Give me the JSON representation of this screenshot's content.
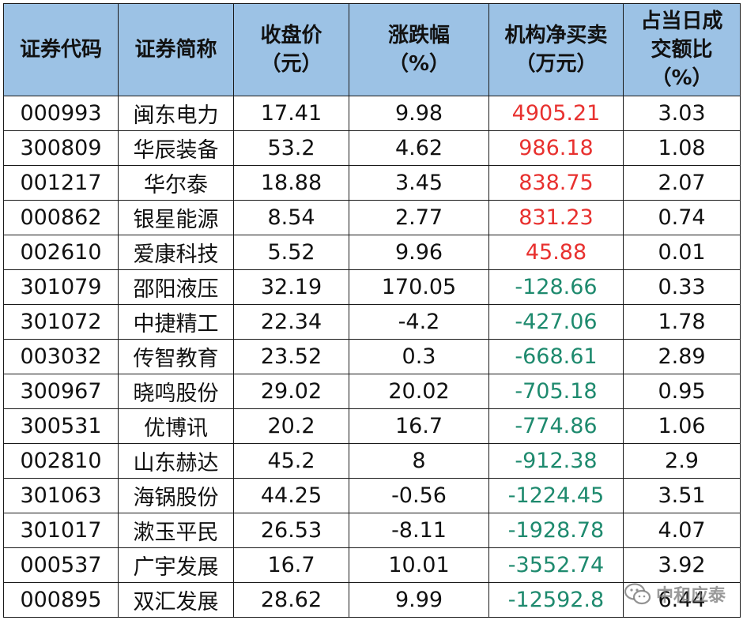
{
  "table": {
    "headers": [
      [
        "证券代码"
      ],
      [
        "证券简称"
      ],
      [
        "收盘价",
        "（元）"
      ],
      [
        "涨跌幅",
        "（%）"
      ],
      [
        "机构净买卖",
        "（万元）"
      ],
      [
        "占当日成",
        "交额比",
        "（%）"
      ]
    ],
    "rows": [
      {
        "code": "000993",
        "name": "闽东电力",
        "close": "17.41",
        "change": "9.98",
        "net": "4905.21",
        "ratio": "3.03",
        "dir": "pos"
      },
      {
        "code": "300809",
        "name": "华辰装备",
        "close": "53.2",
        "change": "4.62",
        "net": "986.18",
        "ratio": "1.08",
        "dir": "pos"
      },
      {
        "code": "001217",
        "name": "华尔泰",
        "close": "18.88",
        "change": "3.45",
        "net": "838.75",
        "ratio": "2.07",
        "dir": "pos"
      },
      {
        "code": "000862",
        "name": "银星能源",
        "close": "8.54",
        "change": "2.77",
        "net": "831.23",
        "ratio": "0.74",
        "dir": "pos"
      },
      {
        "code": "002610",
        "name": "爱康科技",
        "close": "5.52",
        "change": "9.96",
        "net": "45.88",
        "ratio": "0.01",
        "dir": "pos"
      },
      {
        "code": "301079",
        "name": "邵阳液压",
        "close": "32.19",
        "change": "170.05",
        "net": "-128.66",
        "ratio": "0.33",
        "dir": "neg"
      },
      {
        "code": "301072",
        "name": "中捷精工",
        "close": "22.34",
        "change": "-4.2",
        "net": "-427.06",
        "ratio": "1.78",
        "dir": "neg"
      },
      {
        "code": "003032",
        "name": "传智教育",
        "close": "23.52",
        "change": "0.3",
        "net": "-668.61",
        "ratio": "2.89",
        "dir": "neg"
      },
      {
        "code": "300967",
        "name": "晓鸣股份",
        "close": "29.02",
        "change": "20.02",
        "net": "-705.18",
        "ratio": "0.95",
        "dir": "neg"
      },
      {
        "code": "300531",
        "name": "优博讯",
        "close": "20.2",
        "change": "16.7",
        "net": "-774.86",
        "ratio": "1.06",
        "dir": "neg"
      },
      {
        "code": "002810",
        "name": "山东赫达",
        "close": "45.2",
        "change": "8",
        "net": "-912.38",
        "ratio": "2.9",
        "dir": "neg"
      },
      {
        "code": "301063",
        "name": "海锅股份",
        "close": "44.25",
        "change": "-0.56",
        "net": "-1224.45",
        "ratio": "3.51",
        "dir": "neg"
      },
      {
        "code": "301017",
        "name": "漱玉平民",
        "close": "26.53",
        "change": "-8.11",
        "net": "-1928.78",
        "ratio": "4.07",
        "dir": "neg"
      },
      {
        "code": "000537",
        "name": "广宇发展",
        "close": "16.7",
        "change": "10.01",
        "net": "-3552.74",
        "ratio": "3.92",
        "dir": "neg"
      },
      {
        "code": "000895",
        "name": "双汇发展",
        "close": "28.62",
        "change": "9.99",
        "net": "-12592.8",
        "ratio": "6.44",
        "dir": "neg"
      }
    ]
  },
  "watermark": {
    "text": "中和应泰",
    "icon": "wechat-icon"
  },
  "colors": {
    "header_bg": "#9cc2e5",
    "positive": "#e8312f",
    "negative": "#1e8a6e",
    "border": "#1a1a1a"
  }
}
